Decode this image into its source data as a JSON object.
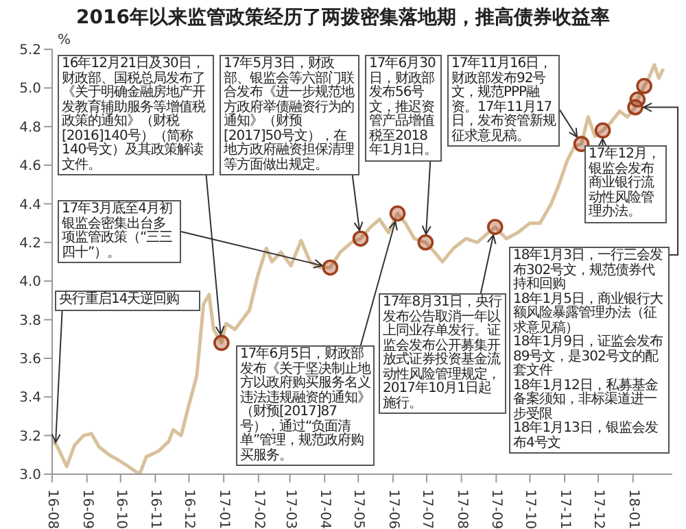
{
  "chart_data": {
    "type": "line",
    "title": "2016年以来监管政策经历了两拨密集落地期，推高债券收益率",
    "ylabel": "%",
    "xlim": [
      "2016-08-01",
      "2018-02-05"
    ],
    "xticks": [
      {
        "value": "2016-08",
        "label": "16-08"
      },
      {
        "value": "2016-09",
        "label": "16-09"
      },
      {
        "value": "2016-10",
        "label": "16-10"
      },
      {
        "value": "2016-11",
        "label": "16-11"
      },
      {
        "value": "2016-12",
        "label": "16-12"
      },
      {
        "value": "2017-01",
        "label": "17-01"
      },
      {
        "value": "2017-02",
        "label": "17-02"
      },
      {
        "value": "2017-03",
        "label": "17-03"
      },
      {
        "value": "2017-04",
        "label": "17-04"
      },
      {
        "value": "2017-05",
        "label": "17-05"
      },
      {
        "value": "2017-06",
        "label": "17-06"
      },
      {
        "value": "2017-07",
        "label": "17-07"
      },
      {
        "value": "2017-08",
        "label": "17-08"
      },
      {
        "value": "2017-09",
        "label": "17-09"
      },
      {
        "value": "2017-10",
        "label": "17-10"
      },
      {
        "value": "2017-11",
        "label": "17-11"
      },
      {
        "value": "2017-12",
        "label": "17-12"
      },
      {
        "value": "2018-01",
        "label": "18-01"
      }
    ],
    "ylim": [
      3.0,
      5.2
    ],
    "yticks": [
      {
        "value": 3,
        "label": "3.0"
      },
      3.2,
      3.4,
      3.6,
      3.8,
      {
        "value": 4,
        "label": "4.0"
      },
      4.2,
      4.4,
      4.6,
      4.8,
      {
        "value": 5,
        "label": "5.0"
      },
      5.2
    ],
    "series": [
      {
        "type": "line",
        "color": "#d8c19b",
        "marker": "none",
        "x": [
          "2016-08-01",
          "2016-08-05",
          "2016-08-14",
          "2016-08-21",
          "2016-08-29",
          "2016-09-05",
          "2016-09-12",
          "2016-09-21",
          "2016-09-30",
          "2016-10-08",
          "2016-10-18",
          "2016-10-24",
          "2016-11-04",
          "2016-11-13",
          "2016-11-17",
          "2016-11-24",
          "2016-12-01",
          "2016-12-08",
          "2016-12-14",
          "2016-12-19",
          "2016-12-23",
          "2016-12-30",
          "2017-01-03",
          "2017-01-11",
          "2017-01-24",
          "2017-01-31",
          "2017-02-08",
          "2017-02-13",
          "2017-02-21",
          "2017-03-02",
          "2017-03-11",
          "2017-03-19",
          "2017-03-28",
          "2017-04-06",
          "2017-04-15",
          "2017-04-25",
          "2017-05-03",
          "2017-05-12",
          "2017-05-20",
          "2017-05-28",
          "2017-06-05",
          "2017-06-12",
          "2017-06-20",
          "2017-06-30",
          "2017-07-08",
          "2017-07-15",
          "2017-07-25",
          "2017-08-05",
          "2017-08-15",
          "2017-08-25",
          "2017-08-31",
          "2017-09-10",
          "2017-09-20",
          "2017-10-01",
          "2017-10-10",
          "2017-10-20",
          "2017-10-27",
          "2017-11-03",
          "2017-11-10",
          "2017-11-16",
          "2017-11-22",
          "2017-11-28",
          "2017-12-05",
          "2017-12-12",
          "2017-12-20",
          "2017-12-27",
          "2018-01-03",
          "2018-01-05",
          "2018-01-11",
          "2018-01-15",
          "2018-01-20",
          "2018-01-24",
          "2018-01-28"
        ],
        "values": [
          3.17,
          3.15,
          3.04,
          3.15,
          3.2,
          3.21,
          3.14,
          3.1,
          3.07,
          3.04,
          3.0,
          3.09,
          3.12,
          3.17,
          3.23,
          3.2,
          3.36,
          3.51,
          3.88,
          3.93,
          3.75,
          3.68,
          3.78,
          3.75,
          3.85,
          4.02,
          4.17,
          4.1,
          4.15,
          4.08,
          4.21,
          4.1,
          4.07,
          4.07,
          4.15,
          4.2,
          4.22,
          4.28,
          4.32,
          4.25,
          4.35,
          4.3,
          4.22,
          4.2,
          4.15,
          4.1,
          4.17,
          4.22,
          4.2,
          4.25,
          4.28,
          4.22,
          4.25,
          4.3,
          4.3,
          4.4,
          4.5,
          4.62,
          4.7,
          4.71,
          4.85,
          4.75,
          4.78,
          4.82,
          4.88,
          4.85,
          4.9,
          4.94,
          5.01,
          5.05,
          5.12,
          5.05,
          5.1
        ]
      },
      {
        "type": "scatter",
        "color": "#a0401c",
        "marker": "circle",
        "x": [
          "2016-12-30",
          "2017-04-06",
          "2017-05-03",
          "2017-06-05",
          "2017-06-30",
          "2017-08-31",
          "2017-11-16",
          "2017-12-05",
          "2018-01-03",
          "2018-01-05",
          "2018-01-11"
        ],
        "values": [
          3.68,
          4.07,
          4.22,
          4.35,
          4.2,
          4.28,
          4.71,
          4.78,
          4.9,
          4.94,
          5.01
        ]
      }
    ],
    "annotations": [
      {
        "text": "央行重启14天逆回购",
        "x": "2016-08-04",
        "y": 3.15
      },
      {
        "text": "16年12月21日及30日，财政部、国税总局发布了《关于明确金融房地产开发教育辅助服务等增值税政策的通知》（财税[2016]140号）（简称140号文）及其政策解读文件。",
        "x": "2016-12-30",
        "y": 3.68
      },
      {
        "text": "17年3月底至4月初银监会密集出台多项监管政策（“三三四十”）。",
        "x": "2017-04-06",
        "y": 4.07
      },
      {
        "text": "17年5月3日，财政部、银监会等六部门联合发布《进一步规范地方政府举债融资行为的通知》（财预[2017]50号文），在地方政府融资担保清理等方面做出规定。",
        "x": "2017-05-03",
        "y": 4.22
      },
      {
        "text": "17年6月5日，财政部发布《关于坚决制止地方以政府购买服务名义违法违规融资的通知》（财预[2017]87号），通过“负面清单”管理，规范政府购买服务。",
        "x": "2017-06-05",
        "y": 4.35
      },
      {
        "text": "17年6月30日，财政部发布56号文，推迟资管产品增值税至2018年1月1日。",
        "x": "2017-06-30",
        "y": 4.2
      },
      {
        "text": "17年8月31日，央行发布公告取消一年以上同业存单发行。证监会发布公开募集开放式证券投资基金流动性风险管理规定，2017年10月1日起施行。",
        "x": "2017-08-31",
        "y": 4.28
      },
      {
        "text": "17年11月16日，财政部发布92号文，规范PPP融资。17年11月17日，发布资管新规征求意见稿。",
        "x": "2017-11-16",
        "y": 4.71
      },
      {
        "text": "17年12月，银监会发布商业银行流动性风险管理办法。",
        "x": "2017-12-05",
        "y": 4.78
      },
      {
        "text": "18年1月3日，一行三会发布302号文，规范债券代持和回购",
        "x": "2018-01-03",
        "y": 4.9
      },
      "18年1月5日，商业银行大额风险暴露管理办法（征求意见稿）",
      "18年1月9日，证监会发布89号文，是302号文的配套文件",
      "18年1月12日，私募基金备案须知，非标渠道进一步受限",
      "18年1月13日，银监会发布4号文"
    ]
  }
}
